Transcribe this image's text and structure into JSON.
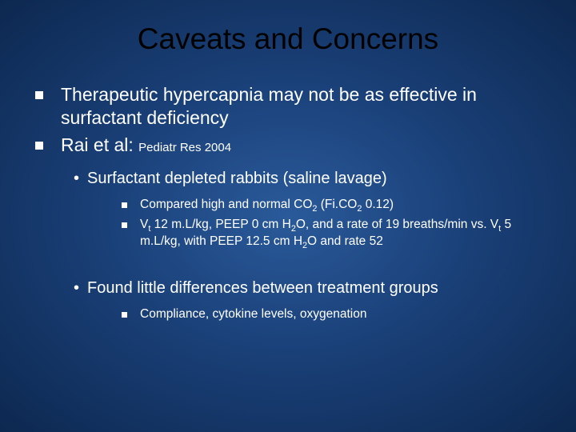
{
  "colors": {
    "background_center": "#2a5a9a",
    "background_mid": "#1a4078",
    "background_edge": "#0d2850",
    "title_color": "#000000",
    "body_text_color": "#ffffff",
    "bullet_square_color": "#ffffff"
  },
  "typography": {
    "title_font": "Arial",
    "body_font": "Verdana",
    "title_size_pt": 28,
    "l1_size_pt": 17,
    "l2_size_pt": 15,
    "l3_size_pt": 12
  },
  "title": "Caveats and Concerns",
  "bullets_l1": [
    {
      "text": "Therapeutic hypercapnia may not be as effective in surfactant deficiency"
    },
    {
      "prefix": "Rai et al: ",
      "cite": "Pediatr Res 2004"
    }
  ],
  "sections": [
    {
      "l2": "Surfactant depleted rabbits (saline lavage)",
      "l3": [
        {
          "pre": "Compared high and normal CO",
          "sub1": "2",
          "mid": " (Fi.CO",
          "sub2": "2",
          "post": " 0.12)"
        },
        {
          "pre": "V",
          "sub1": "t",
          "mid": " 12 m.L/kg, PEEP 0 cm H",
          "sub2": "2",
          "mid2": "O, and a rate of 19 breaths/min vs. V",
          "sub3": "t",
          "mid3": " 5 m.L/kg, with PEEP 12.5 cm H",
          "sub4": "2",
          "post": "O and rate 52"
        }
      ]
    },
    {
      "l2": "Found little differences between treatment groups",
      "l3": [
        {
          "pre": "Compliance, cytokine levels, oxygenation"
        }
      ]
    }
  ]
}
